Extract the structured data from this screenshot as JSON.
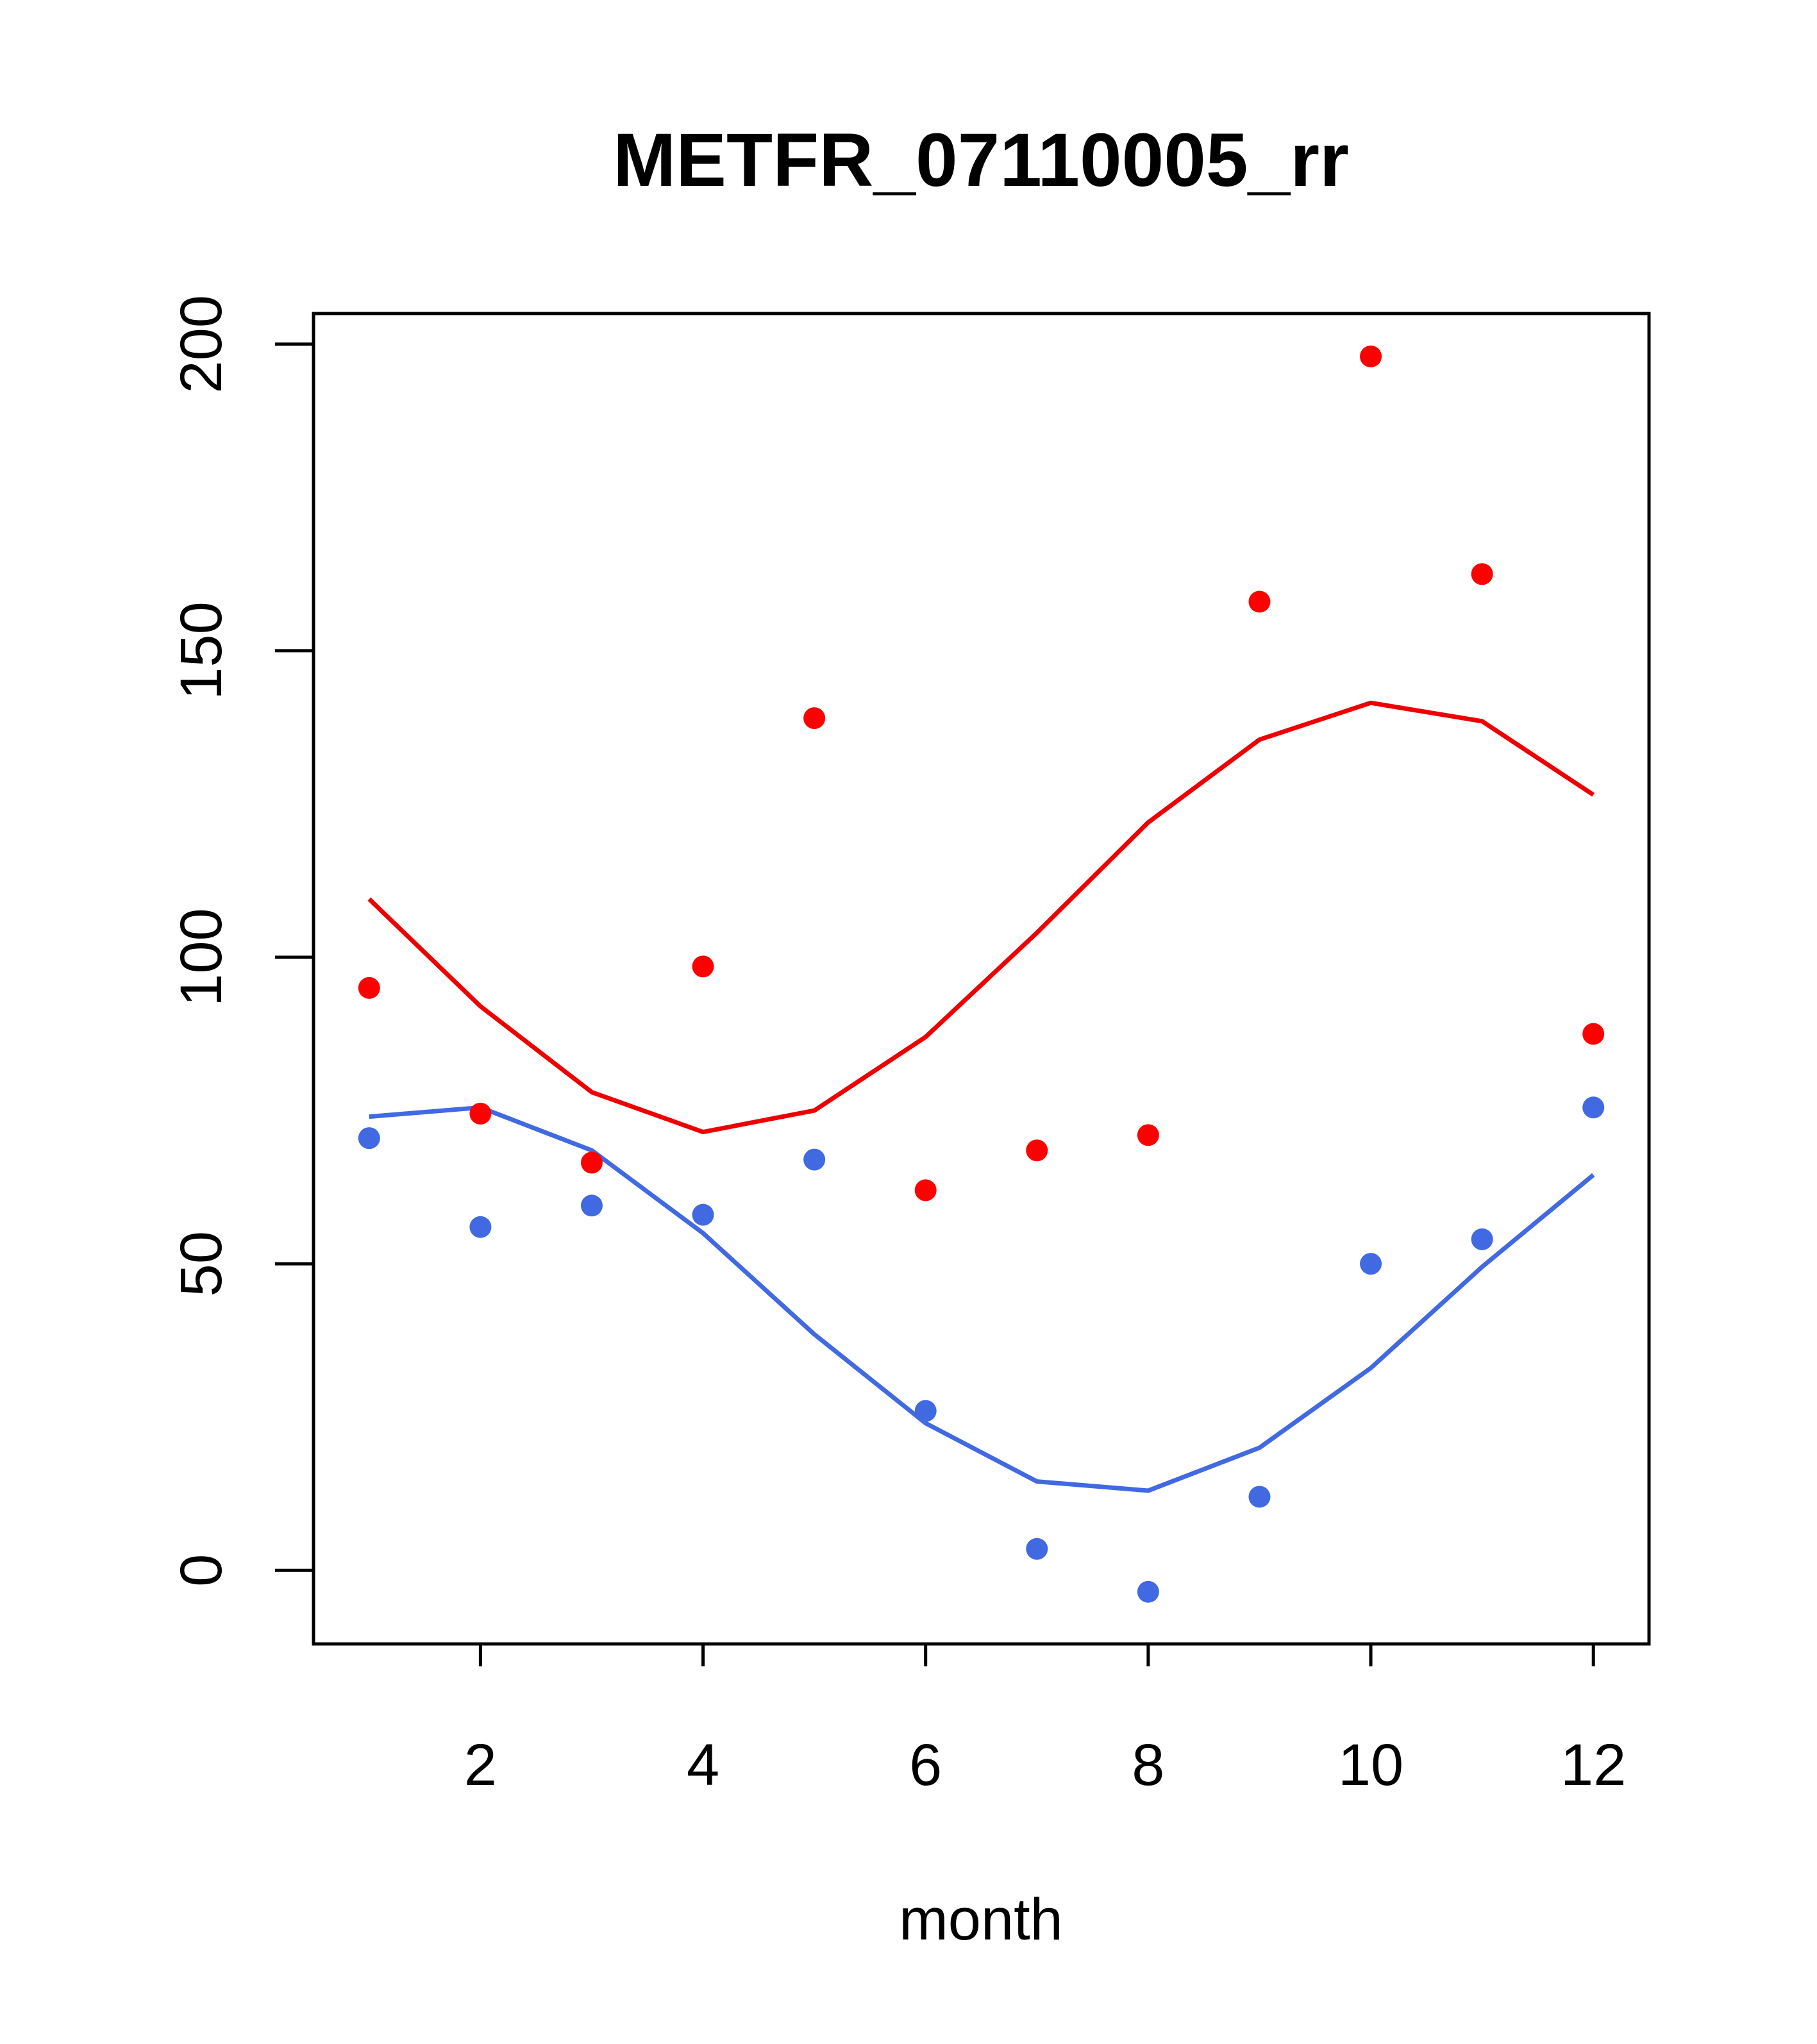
{
  "chart_data": {
    "type": "scatter",
    "title": "METFR_07110005_rr",
    "xlabel": "month",
    "ylabel": "",
    "xlim": [
      0.5,
      12.5
    ],
    "ylim": [
      -12,
      205
    ],
    "x_ticks": [
      2,
      4,
      6,
      8,
      10,
      12
    ],
    "y_ticks": [
      0,
      50,
      100,
      150,
      200
    ],
    "x": [
      1,
      2,
      3,
      4,
      5,
      6,
      7,
      8,
      9,
      10,
      11,
      12
    ],
    "series": [
      {
        "name": "red points",
        "kind": "points",
        "color": "#ff0000",
        "values": [
          95,
          74.5,
          66.5,
          98.5,
          139,
          62,
          68.5,
          71,
          158,
          198,
          162.5,
          87.5
        ]
      },
      {
        "name": "red line",
        "kind": "line",
        "color": "#ee0000",
        "values": [
          109.5,
          92,
          78,
          71.5,
          75,
          87,
          104,
          122,
          135.5,
          141.5,
          138.5,
          126.5
        ]
      },
      {
        "name": "blue points",
        "kind": "points",
        "color": "#4169e1",
        "values": [
          70.5,
          56,
          59.5,
          58,
          67,
          26,
          3.5,
          -3.5,
          12,
          50,
          54,
          75.5
        ]
      },
      {
        "name": "blue line",
        "kind": "line",
        "color": "#4169e1",
        "values": [
          74,
          75.5,
          68.5,
          55,
          38.5,
          24,
          14.5,
          13,
          20,
          33,
          49.5,
          64.5
        ]
      }
    ]
  }
}
